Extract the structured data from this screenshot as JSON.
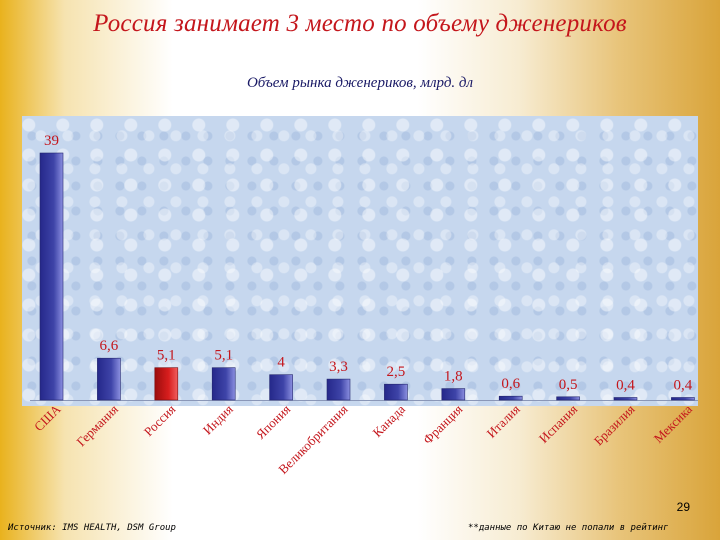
{
  "slide": {
    "title": "Россия занимает 3 место по объему дженериков",
    "page_number": "29",
    "source": "Источник: IMS HEALTH, DSM Group",
    "footnote": "**данные по Китаю не попали в рейтинг"
  },
  "colors": {
    "title": "#c4161c",
    "bar": "#3e44a8",
    "bar_highlight": "#d81e1e",
    "value_label": "#c4161c",
    "axis_label": "#c4161c",
    "plot_background": "#c6d7ee"
  },
  "chart_data": {
    "type": "bar",
    "title": "Объем рынка дженериков, млрд. дл",
    "categories": [
      "США",
      "Германия",
      "Россия",
      "Индия",
      "Япония",
      "Великобритания",
      "Канада",
      "Франция",
      "Италия",
      "Испания",
      "Бразилия",
      "Мексика"
    ],
    "values": [
      39,
      6.6,
      5.1,
      5.1,
      4,
      3.3,
      2.5,
      1.8,
      0.6,
      0.5,
      0.4,
      0.4
    ],
    "data_labels": [
      "39",
      "6,6",
      "5,1",
      "5,1",
      "4",
      "3,3",
      "2,5",
      "1,8",
      "0,6",
      "0,5",
      "0,4",
      "0,4"
    ],
    "highlight_category": "Россия",
    "ylim": [
      0,
      39
    ],
    "xlabel": "",
    "ylabel": "",
    "grid": false,
    "legend": "none"
  }
}
